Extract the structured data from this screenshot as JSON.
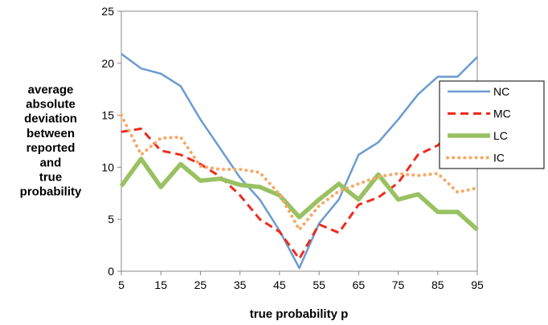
{
  "chart_data": {
    "type": "line",
    "title": "",
    "xlabel": "true probability p",
    "ylabel_lines": [
      "average",
      "absolute",
      "deviation",
      "between",
      "reported",
      "and",
      "true",
      "probability"
    ],
    "x": [
      5,
      10,
      15,
      20,
      25,
      30,
      35,
      40,
      45,
      50,
      55,
      60,
      65,
      70,
      75,
      80,
      85,
      90,
      95
    ],
    "xlim": [
      5,
      95
    ],
    "ylim": [
      0,
      25
    ],
    "x_ticks": [
      5,
      15,
      25,
      35,
      45,
      55,
      65,
      75,
      85,
      95
    ],
    "y_ticks": [
      0,
      5,
      10,
      15,
      20,
      25
    ],
    "grid": false,
    "legend_position": "right",
    "series": [
      {
        "name": "NC",
        "color": "#6b9bd1",
        "style": "solid",
        "values": [
          20.9,
          19.5,
          19.0,
          17.8,
          14.6,
          11.8,
          9.0,
          6.9,
          3.9,
          0.3,
          4.6,
          6.9,
          11.2,
          12.4,
          14.6,
          17.0,
          18.7,
          18.7,
          20.6
        ]
      },
      {
        "name": "MC",
        "color": "#ee2b1c",
        "style": "dashed",
        "values": [
          13.4,
          13.7,
          11.6,
          11.2,
          10.3,
          9.1,
          7.3,
          5.0,
          3.8,
          1.2,
          4.5,
          3.7,
          6.4,
          7.1,
          8.5,
          11.2,
          12.1,
          13.9,
          11.2
        ]
      },
      {
        "name": "LC",
        "color": "#99c162",
        "style": "thick",
        "values": [
          8.2,
          10.8,
          8.1,
          10.3,
          8.7,
          8.9,
          8.3,
          8.1,
          7.3,
          5.2,
          6.9,
          8.4,
          6.9,
          9.3,
          6.9,
          7.4,
          5.7,
          5.7,
          4.0
        ]
      },
      {
        "name": "IC",
        "color": "#f8a863",
        "style": "dotted",
        "values": [
          15.0,
          11.2,
          12.8,
          12.9,
          10.1,
          9.8,
          9.8,
          9.5,
          7.4,
          4.0,
          6.3,
          7.7,
          8.4,
          9.1,
          9.4,
          9.2,
          9.4,
          7.6,
          8.0
        ]
      }
    ]
  }
}
